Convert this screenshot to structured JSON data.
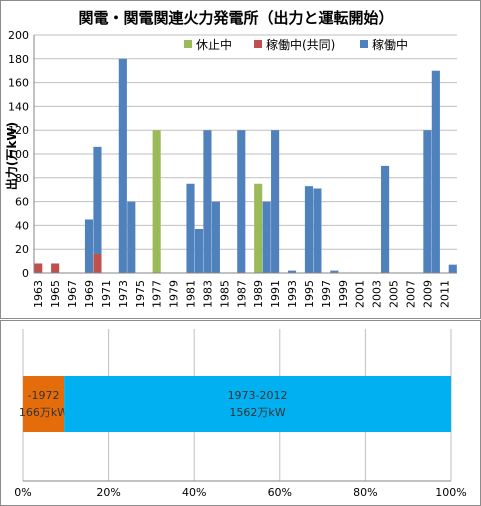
{
  "chart_data": [
    {
      "type": "bar",
      "title": "関電・関電関連火力発電所（出力と運転開始）",
      "ylabel": "出力(万kW)",
      "xlabel": "",
      "ylim": [
        0,
        200
      ],
      "yticks": [
        0,
        20,
        40,
        60,
        80,
        100,
        120,
        140,
        160,
        180,
        200
      ],
      "grid": true,
      "legend": "top-right",
      "stacked": true,
      "x_tick_labels": [
        "1963",
        "1965",
        "1967",
        "1969",
        "1971",
        "1973",
        "1975",
        "1977",
        "1979",
        "1981",
        "1983",
        "1985",
        "1987",
        "1989",
        "1991",
        "1993",
        "1995",
        "1997",
        "1999",
        "2001",
        "2003",
        "2005",
        "2007",
        "2009",
        "2011"
      ],
      "categories": [
        1963,
        1964,
        1965,
        1966,
        1967,
        1968,
        1969,
        1970,
        1971,
        1972,
        1973,
        1974,
        1975,
        1976,
        1977,
        1978,
        1979,
        1980,
        1981,
        1982,
        1983,
        1984,
        1985,
        1986,
        1987,
        1988,
        1989,
        1990,
        1991,
        1992,
        1993,
        1994,
        1995,
        1996,
        1997,
        1998,
        1999,
        2000,
        2001,
        2002,
        2003,
        2004,
        2005,
        2006,
        2007,
        2008,
        2009,
        2010,
        2011,
        2012
      ],
      "series": [
        {
          "name": "休止中",
          "color": "#9bbb59",
          "values": [
            0,
            0,
            0,
            0,
            0,
            0,
            0,
            0,
            0,
            0,
            0,
            0,
            0,
            0,
            120,
            0,
            0,
            0,
            0,
            0,
            0,
            0,
            0,
            0,
            0,
            0,
            75,
            0,
            0,
            0,
            0,
            0,
            0,
            0,
            0,
            0,
            0,
            0,
            0,
            0,
            0,
            0,
            0,
            0,
            0,
            0,
            0,
            0,
            0,
            0
          ]
        },
        {
          "name": "稼働中(共同)",
          "color": "#c0504d",
          "values": [
            8,
            0,
            8,
            0,
            0,
            0,
            0,
            16,
            0,
            0,
            0,
            0,
            0,
            0,
            0,
            0,
            0,
            0,
            0,
            0,
            0,
            0,
            0,
            0,
            0,
            0,
            0,
            0,
            0,
            0,
            0,
            0,
            0,
            0,
            0,
            0,
            0,
            0,
            0,
            0,
            0,
            0,
            0,
            0,
            0,
            0,
            0,
            0,
            0,
            0
          ]
        },
        {
          "name": "稼働中",
          "color": "#4f81bd",
          "values": [
            0,
            0,
            0,
            0,
            0,
            0,
            45,
            90,
            0,
            0,
            180,
            60,
            0,
            0,
            0,
            0,
            0,
            0,
            75,
            37,
            120,
            60,
            0,
            0,
            120,
            0,
            0,
            60,
            120,
            0,
            2,
            0,
            73,
            71,
            0,
            2,
            0,
            0,
            0,
            0,
            0,
            90,
            0,
            0,
            0,
            0,
            120,
            170,
            0,
            7
          ]
        }
      ]
    },
    {
      "type": "bar",
      "orientation": "horizontal",
      "stacked_percent": true,
      "xticks": [
        "0%",
        "20%",
        "40%",
        "60%",
        "80%",
        "100%"
      ],
      "segments": [
        {
          "label": "-1972",
          "value_label": "166万kW",
          "value": 166,
          "color": "#e46c0a"
        },
        {
          "label": "1973-2012",
          "value_label": "1562万kW",
          "value": 1562,
          "color": "#00b0f0"
        }
      ]
    }
  ]
}
